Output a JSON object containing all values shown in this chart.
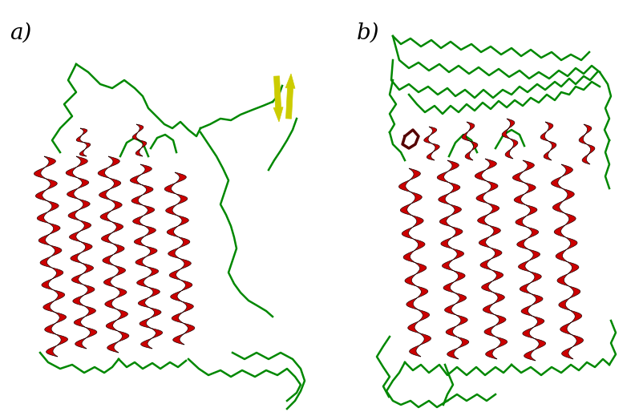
{
  "background_color": "#ffffff",
  "label_a": "a)",
  "label_b": "b)",
  "label_fontsize": 20,
  "helix_color": "#cc0000",
  "helix_edge_color": "#220000",
  "loop_color": "#008800",
  "sheet_color": "#cccc00",
  "sheet_edge_color": "#888800",
  "dark_red": "#550000",
  "fig_width": 8.02,
  "fig_height": 5.19,
  "dpi": 100
}
